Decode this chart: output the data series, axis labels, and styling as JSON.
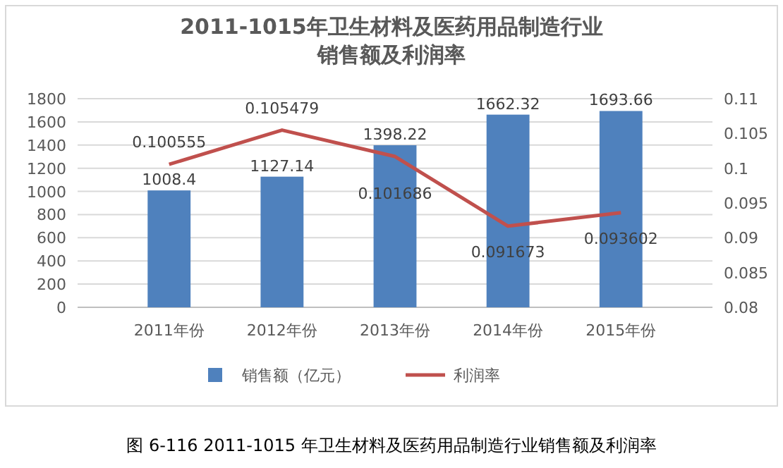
{
  "chart_data": {
    "type": "bar",
    "title": "2011-1015年卫生材料及医药用品制造行业销售额及利润率",
    "categories": [
      "2011年份",
      "2012年份",
      "2013年份",
      "2014年份",
      "2015年份"
    ],
    "series": [
      {
        "name": "销售额（亿元）",
        "color": "#4f81bd",
        "values": [
          1008.4,
          1127.14,
          1398.22,
          1662.32,
          1693.66
        ]
      },
      {
        "name": "利润率",
        "type": "line",
        "axis": "y2",
        "color": "#c0504d",
        "values": [
          0.100555,
          0.105479,
          0.101686,
          0.091673,
          0.093602
        ]
      }
    ],
    "ylim": [
      0,
      1800
    ],
    "yticks": [
      0,
      200,
      400,
      600,
      800,
      1000,
      1200,
      1400,
      1600,
      1800
    ],
    "y2lim": [
      0.08,
      0.11
    ],
    "y2ticks": [
      {
        "value": 0.08,
        "label": "0.08"
      },
      {
        "value": 0.085,
        "label": "0.085"
      },
      {
        "value": 0.09,
        "label": "0.09"
      },
      {
        "value": 0.095,
        "label": "0.095"
      },
      {
        "value": 0.1,
        "label": "0.1"
      },
      {
        "value": 0.105,
        "label": "0.105"
      },
      {
        "value": 0.11,
        "label": "0.11"
      }
    ],
    "grid": "y",
    "legend": "bottom",
    "data_labels": true,
    "marker": "none",
    "annotations": [
      "图 6-116 2011-1015 年卫生材料及医药用品制造行业销售额及利润率"
    ]
  }
}
